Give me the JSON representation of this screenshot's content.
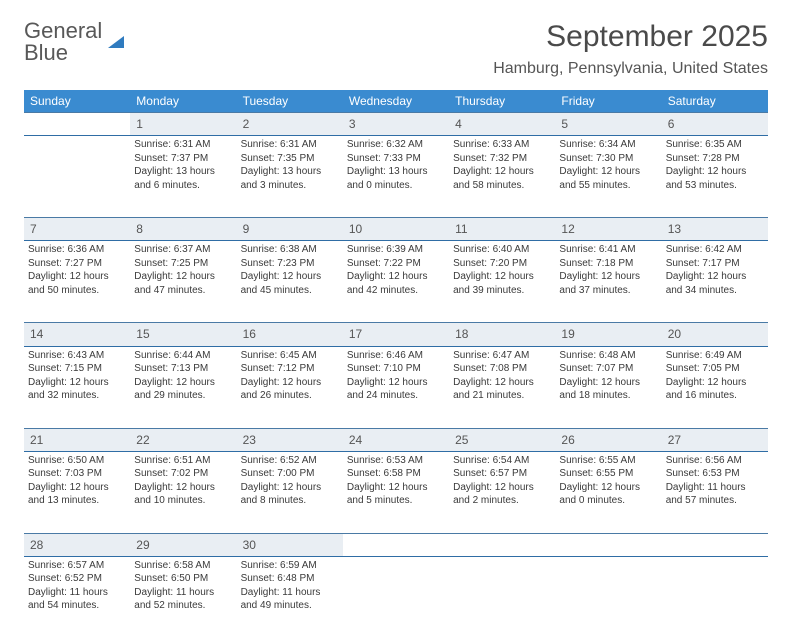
{
  "logo": {
    "line1": "General",
    "line2": "Blue"
  },
  "title": "September 2025",
  "location": "Hamburg, Pennsylvania, United States",
  "colors": {
    "headerBar": "#3a8bd0",
    "dayNumBg": "#e9eef3",
    "weekBorder": "#2f6da5",
    "logoBlue": "#2f7bbf"
  },
  "dayHeaders": [
    "Sunday",
    "Monday",
    "Tuesday",
    "Wednesday",
    "Thursday",
    "Friday",
    "Saturday"
  ],
  "weeks": [
    {
      "nums": [
        "",
        "1",
        "2",
        "3",
        "4",
        "5",
        "6"
      ],
      "cells": [
        {
          "empty": true
        },
        {
          "sunrise": "Sunrise: 6:31 AM",
          "sunset": "Sunset: 7:37 PM",
          "day1": "Daylight: 13 hours",
          "day2": "and 6 minutes."
        },
        {
          "sunrise": "Sunrise: 6:31 AM",
          "sunset": "Sunset: 7:35 PM",
          "day1": "Daylight: 13 hours",
          "day2": "and 3 minutes."
        },
        {
          "sunrise": "Sunrise: 6:32 AM",
          "sunset": "Sunset: 7:33 PM",
          "day1": "Daylight: 13 hours",
          "day2": "and 0 minutes."
        },
        {
          "sunrise": "Sunrise: 6:33 AM",
          "sunset": "Sunset: 7:32 PM",
          "day1": "Daylight: 12 hours",
          "day2": "and 58 minutes."
        },
        {
          "sunrise": "Sunrise: 6:34 AM",
          "sunset": "Sunset: 7:30 PM",
          "day1": "Daylight: 12 hours",
          "day2": "and 55 minutes."
        },
        {
          "sunrise": "Sunrise: 6:35 AM",
          "sunset": "Sunset: 7:28 PM",
          "day1": "Daylight: 12 hours",
          "day2": "and 53 minutes."
        }
      ]
    },
    {
      "nums": [
        "7",
        "8",
        "9",
        "10",
        "11",
        "12",
        "13"
      ],
      "cells": [
        {
          "sunrise": "Sunrise: 6:36 AM",
          "sunset": "Sunset: 7:27 PM",
          "day1": "Daylight: 12 hours",
          "day2": "and 50 minutes."
        },
        {
          "sunrise": "Sunrise: 6:37 AM",
          "sunset": "Sunset: 7:25 PM",
          "day1": "Daylight: 12 hours",
          "day2": "and 47 minutes."
        },
        {
          "sunrise": "Sunrise: 6:38 AM",
          "sunset": "Sunset: 7:23 PM",
          "day1": "Daylight: 12 hours",
          "day2": "and 45 minutes."
        },
        {
          "sunrise": "Sunrise: 6:39 AM",
          "sunset": "Sunset: 7:22 PM",
          "day1": "Daylight: 12 hours",
          "day2": "and 42 minutes."
        },
        {
          "sunrise": "Sunrise: 6:40 AM",
          "sunset": "Sunset: 7:20 PM",
          "day1": "Daylight: 12 hours",
          "day2": "and 39 minutes."
        },
        {
          "sunrise": "Sunrise: 6:41 AM",
          "sunset": "Sunset: 7:18 PM",
          "day1": "Daylight: 12 hours",
          "day2": "and 37 minutes."
        },
        {
          "sunrise": "Sunrise: 6:42 AM",
          "sunset": "Sunset: 7:17 PM",
          "day1": "Daylight: 12 hours",
          "day2": "and 34 minutes."
        }
      ]
    },
    {
      "nums": [
        "14",
        "15",
        "16",
        "17",
        "18",
        "19",
        "20"
      ],
      "cells": [
        {
          "sunrise": "Sunrise: 6:43 AM",
          "sunset": "Sunset: 7:15 PM",
          "day1": "Daylight: 12 hours",
          "day2": "and 32 minutes."
        },
        {
          "sunrise": "Sunrise: 6:44 AM",
          "sunset": "Sunset: 7:13 PM",
          "day1": "Daylight: 12 hours",
          "day2": "and 29 minutes."
        },
        {
          "sunrise": "Sunrise: 6:45 AM",
          "sunset": "Sunset: 7:12 PM",
          "day1": "Daylight: 12 hours",
          "day2": "and 26 minutes."
        },
        {
          "sunrise": "Sunrise: 6:46 AM",
          "sunset": "Sunset: 7:10 PM",
          "day1": "Daylight: 12 hours",
          "day2": "and 24 minutes."
        },
        {
          "sunrise": "Sunrise: 6:47 AM",
          "sunset": "Sunset: 7:08 PM",
          "day1": "Daylight: 12 hours",
          "day2": "and 21 minutes."
        },
        {
          "sunrise": "Sunrise: 6:48 AM",
          "sunset": "Sunset: 7:07 PM",
          "day1": "Daylight: 12 hours",
          "day2": "and 18 minutes."
        },
        {
          "sunrise": "Sunrise: 6:49 AM",
          "sunset": "Sunset: 7:05 PM",
          "day1": "Daylight: 12 hours",
          "day2": "and 16 minutes."
        }
      ]
    },
    {
      "nums": [
        "21",
        "22",
        "23",
        "24",
        "25",
        "26",
        "27"
      ],
      "cells": [
        {
          "sunrise": "Sunrise: 6:50 AM",
          "sunset": "Sunset: 7:03 PM",
          "day1": "Daylight: 12 hours",
          "day2": "and 13 minutes."
        },
        {
          "sunrise": "Sunrise: 6:51 AM",
          "sunset": "Sunset: 7:02 PM",
          "day1": "Daylight: 12 hours",
          "day2": "and 10 minutes."
        },
        {
          "sunrise": "Sunrise: 6:52 AM",
          "sunset": "Sunset: 7:00 PM",
          "day1": "Daylight: 12 hours",
          "day2": "and 8 minutes."
        },
        {
          "sunrise": "Sunrise: 6:53 AM",
          "sunset": "Sunset: 6:58 PM",
          "day1": "Daylight: 12 hours",
          "day2": "and 5 minutes."
        },
        {
          "sunrise": "Sunrise: 6:54 AM",
          "sunset": "Sunset: 6:57 PM",
          "day1": "Daylight: 12 hours",
          "day2": "and 2 minutes."
        },
        {
          "sunrise": "Sunrise: 6:55 AM",
          "sunset": "Sunset: 6:55 PM",
          "day1": "Daylight: 12 hours",
          "day2": "and 0 minutes."
        },
        {
          "sunrise": "Sunrise: 6:56 AM",
          "sunset": "Sunset: 6:53 PM",
          "day1": "Daylight: 11 hours",
          "day2": "and 57 minutes."
        }
      ]
    },
    {
      "nums": [
        "28",
        "29",
        "30",
        "",
        "",
        "",
        ""
      ],
      "cells": [
        {
          "sunrise": "Sunrise: 6:57 AM",
          "sunset": "Sunset: 6:52 PM",
          "day1": "Daylight: 11 hours",
          "day2": "and 54 minutes."
        },
        {
          "sunrise": "Sunrise: 6:58 AM",
          "sunset": "Sunset: 6:50 PM",
          "day1": "Daylight: 11 hours",
          "day2": "and 52 minutes."
        },
        {
          "sunrise": "Sunrise: 6:59 AM",
          "sunset": "Sunset: 6:48 PM",
          "day1": "Daylight: 11 hours",
          "day2": "and 49 minutes."
        },
        {
          "empty": true
        },
        {
          "empty": true
        },
        {
          "empty": true
        },
        {
          "empty": true
        }
      ]
    }
  ]
}
